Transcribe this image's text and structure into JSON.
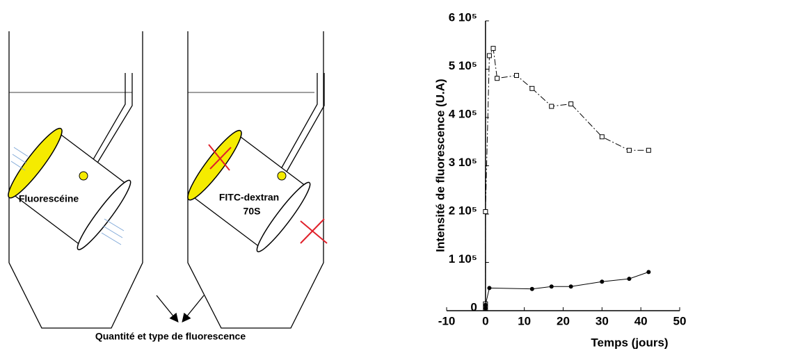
{
  "diagram": {
    "tube_left_label": "Fluorescéine",
    "tube_right_label": [
      "FITC-dextran",
      "70S"
    ],
    "caption": "Quantité et type de fluorescence"
  },
  "chart_data": {
    "type": "line",
    "x_label": "Temps (jours)",
    "y_label": "Intensité de fluorescence (U.A)",
    "xlim": [
      -10,
      50
    ],
    "xticks": [
      -10,
      0,
      10,
      20,
      30,
      40,
      50
    ],
    "ylim": [
      0,
      600000
    ],
    "yticks": [
      0,
      {
        "value": 100000,
        "label": "1 10⁵"
      },
      {
        "value": 200000,
        "label": "2 10⁵"
      },
      {
        "value": 300000,
        "label": "3 10⁵"
      },
      {
        "value": 400000,
        "label": "4 10⁵"
      },
      {
        "value": 500000,
        "label": "5 10⁵"
      },
      {
        "value": 600000,
        "label": "6 10⁵"
      }
    ],
    "series": [
      {
        "color": "#000000",
        "marker": "square",
        "line_style": "dashdot",
        "x": [
          0,
          0,
          0,
          1,
          2,
          3,
          8,
          12,
          17,
          22,
          30,
          37,
          42
        ],
        "values": [
          5000,
          14000,
          205000,
          528000,
          543000,
          481000,
          487000,
          460000,
          423000,
          428000,
          360000,
          332000,
          332000
        ]
      },
      {
        "color": "#000000",
        "marker": "circle",
        "line_style": "solid",
        "x": [
          0,
          0,
          1,
          12,
          17,
          22,
          30,
          37,
          42
        ],
        "values": [
          5000,
          12000,
          47000,
          45000,
          50000,
          50000,
          60000,
          66000,
          80000
        ]
      }
    ]
  }
}
